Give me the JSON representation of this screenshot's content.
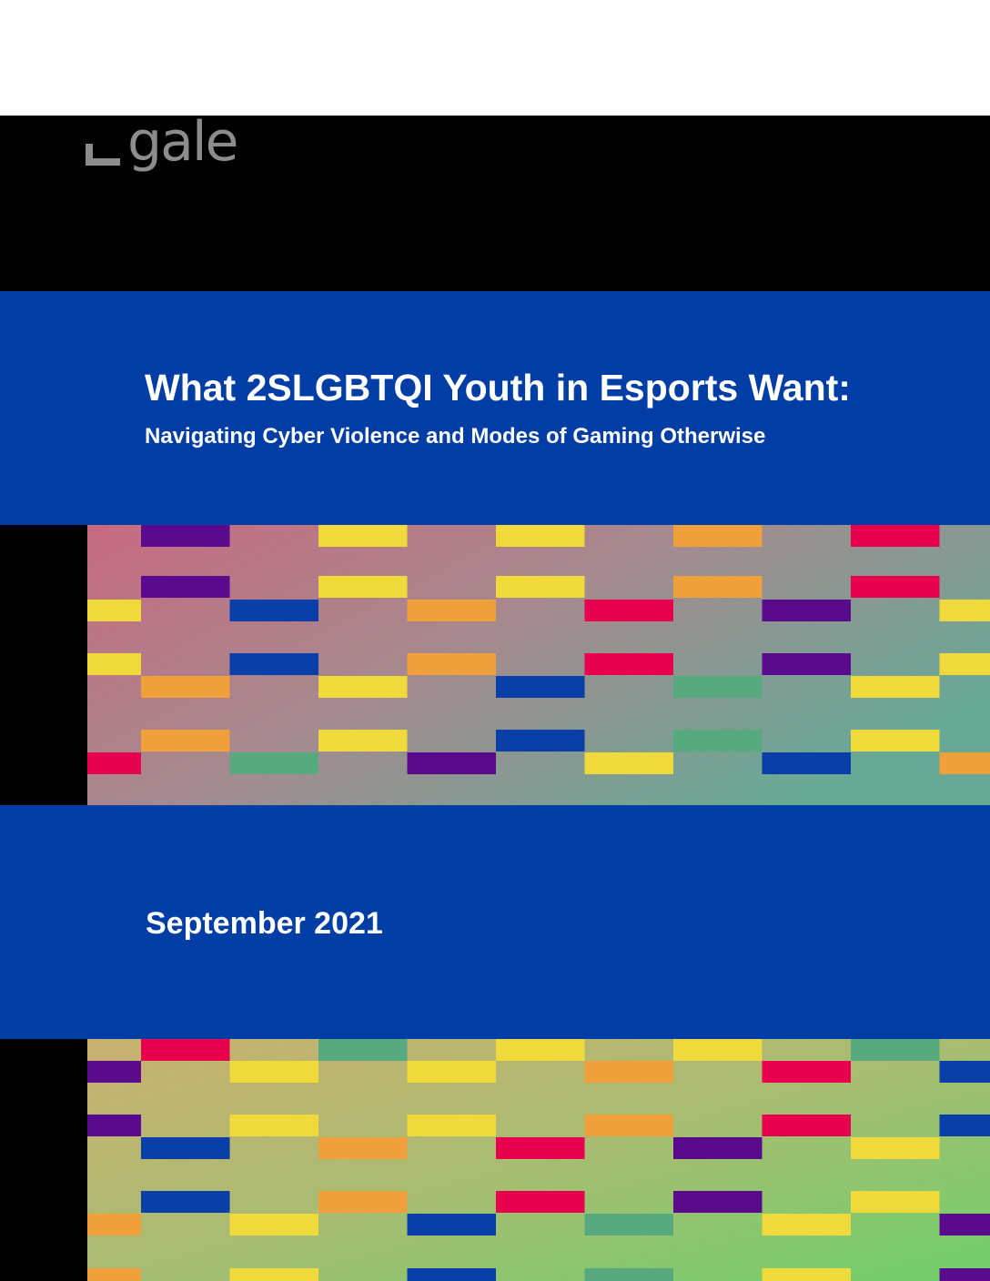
{
  "logo": {
    "text": "gale"
  },
  "cover": {
    "title": "What 2SLGBTQI Youth in Esports Want:",
    "subtitle": "Navigating Cyber Violence and Modes of Gaming Otherwise",
    "date": "September 2021"
  },
  "colors": {
    "blue": "#003da5",
    "black": "#000000",
    "logo_gray": "#8c8c8c",
    "tile_purple": "#5a0a8c",
    "tile_yellow": "#f0d93a",
    "tile_orange": "#f0a03a",
    "tile_red": "#e8004f",
    "tile_blue": "#0a3fa8",
    "tile_green": "#58a880"
  }
}
